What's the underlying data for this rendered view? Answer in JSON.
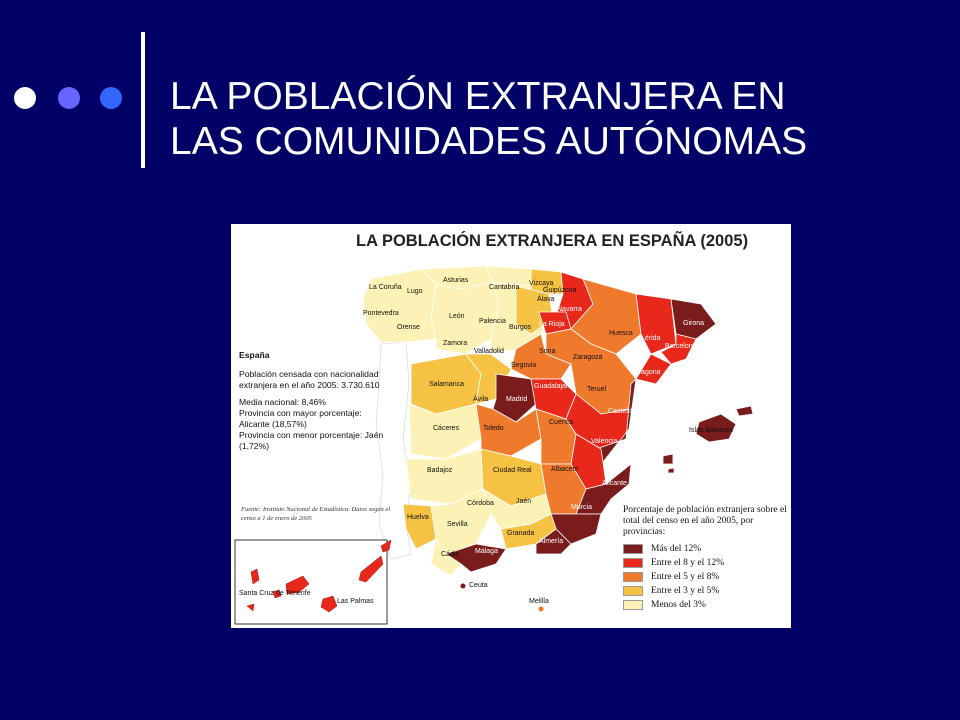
{
  "slide": {
    "title_line1": "LA POBLACIÓN EXTRANJERA EN",
    "title_line2": "LAS COMUNIDADES AUTÓNOMAS",
    "dot_colors": [
      "#ffffff",
      "#6666ff",
      "#3366ff"
    ]
  },
  "map": {
    "title": "LA POBLACIÓN EXTRANJERA EN ESPAÑA (2005)",
    "info": {
      "heading": "España",
      "line1": "Población censada con nacionalidad extranjera en el año 2005: 3.730.610",
      "line2": "Media nacional: 8,46%",
      "line3": "Provincia con mayor porcentaje: Alicante (18,57%)",
      "line4": "Provincia con menor porcentaje: Jaén (1,72%)"
    },
    "source": "Fuente: Instituto Nacional de Estadística. Datos según el censo a 1 de enero de 2005",
    "legend": {
      "title": "Porcentaje de población extranjera sobre el total del censo en el año 2005, por provincias:",
      "items": [
        {
          "label": "Más del 12%",
          "color": "#7a1c1c"
        },
        {
          "label": "Entre el 8 y el 12%",
          "color": "#e8281a"
        },
        {
          "label": "Entre el 5 y el 8%",
          "color": "#f07a2c"
        },
        {
          "label": "Entre el 3 y el 5%",
          "color": "#f5c243"
        },
        {
          "label": "Menos del 3%",
          "color": "#fcf2b5"
        }
      ]
    },
    "labels": [
      {
        "key": "la-coruna",
        "text": "La Coruña"
      },
      {
        "key": "lugo",
        "text": "Lugo"
      },
      {
        "key": "asturias",
        "text": "Asturias"
      },
      {
        "key": "cantabria",
        "text": "Cantabria"
      },
      {
        "key": "vizcaya",
        "text": "Vizcaya"
      },
      {
        "key": "guipuzcoa",
        "text": "Guipúzcoa"
      },
      {
        "key": "alava",
        "text": "Álava"
      },
      {
        "key": "navarra",
        "text": "Navarra"
      },
      {
        "key": "pontevedra",
        "text": "Pontevedra"
      },
      {
        "key": "orense",
        "text": "Orense"
      },
      {
        "key": "leon",
        "text": "León"
      },
      {
        "key": "palencia",
        "text": "Palencia"
      },
      {
        "key": "burgos",
        "text": "Burgos"
      },
      {
        "key": "la-rioja",
        "text": "La Rioja"
      },
      {
        "key": "huesca",
        "text": "Huesca"
      },
      {
        "key": "girona",
        "text": "Girona"
      },
      {
        "key": "zamora",
        "text": "Zamora"
      },
      {
        "key": "valladolid",
        "text": "Valladolid"
      },
      {
        "key": "soria",
        "text": "Soria"
      },
      {
        "key": "zaragoza",
        "text": "Zaragoza"
      },
      {
        "key": "lerida",
        "text": "Lérida"
      },
      {
        "key": "barcelona",
        "text": "Barcelona"
      },
      {
        "key": "segovia",
        "text": "Segovia"
      },
      {
        "key": "tarragona",
        "text": "Tarragona"
      },
      {
        "key": "salamanca",
        "text": "Salamanca"
      },
      {
        "key": "guadalajara",
        "text": "Guadalajara"
      },
      {
        "key": "teruel",
        "text": "Teruel"
      },
      {
        "key": "avila",
        "text": "Ávila"
      },
      {
        "key": "madrid",
        "text": "Madrid"
      },
      {
        "key": "castellon",
        "text": "Castellón"
      },
      {
        "key": "caceres",
        "text": "Cáceres"
      },
      {
        "key": "toledo",
        "text": "Toledo"
      },
      {
        "key": "cuenca",
        "text": "Cuenca"
      },
      {
        "key": "islas-baleares",
        "text": "Islas Baleares"
      },
      {
        "key": "valencia",
        "text": "Valencia"
      },
      {
        "key": "badajoz",
        "text": "Badajoz"
      },
      {
        "key": "ciudad-real",
        "text": "Ciudad Real"
      },
      {
        "key": "albacete",
        "text": "Albacete"
      },
      {
        "key": "alicante",
        "text": "Alicante"
      },
      {
        "key": "cordoba",
        "text": "Córdoba"
      },
      {
        "key": "jaen",
        "text": "Jaén"
      },
      {
        "key": "murcia",
        "text": "Murcia"
      },
      {
        "key": "huelva",
        "text": "Huelva"
      },
      {
        "key": "sevilla",
        "text": "Sevilla"
      },
      {
        "key": "granada",
        "text": "Granada"
      },
      {
        "key": "almeria",
        "text": "Almería"
      },
      {
        "key": "cadiz",
        "text": "Cádiz"
      },
      {
        "key": "malaga",
        "text": "Málaga"
      },
      {
        "key": "ceuta",
        "text": "Ceuta"
      },
      {
        "key": "melilla",
        "text": "Melilla"
      },
      {
        "key": "santa-cruz",
        "text": "Santa Cruz de Tenerife"
      },
      {
        "key": "las-palmas",
        "text": "Las Palmas"
      }
    ]
  }
}
